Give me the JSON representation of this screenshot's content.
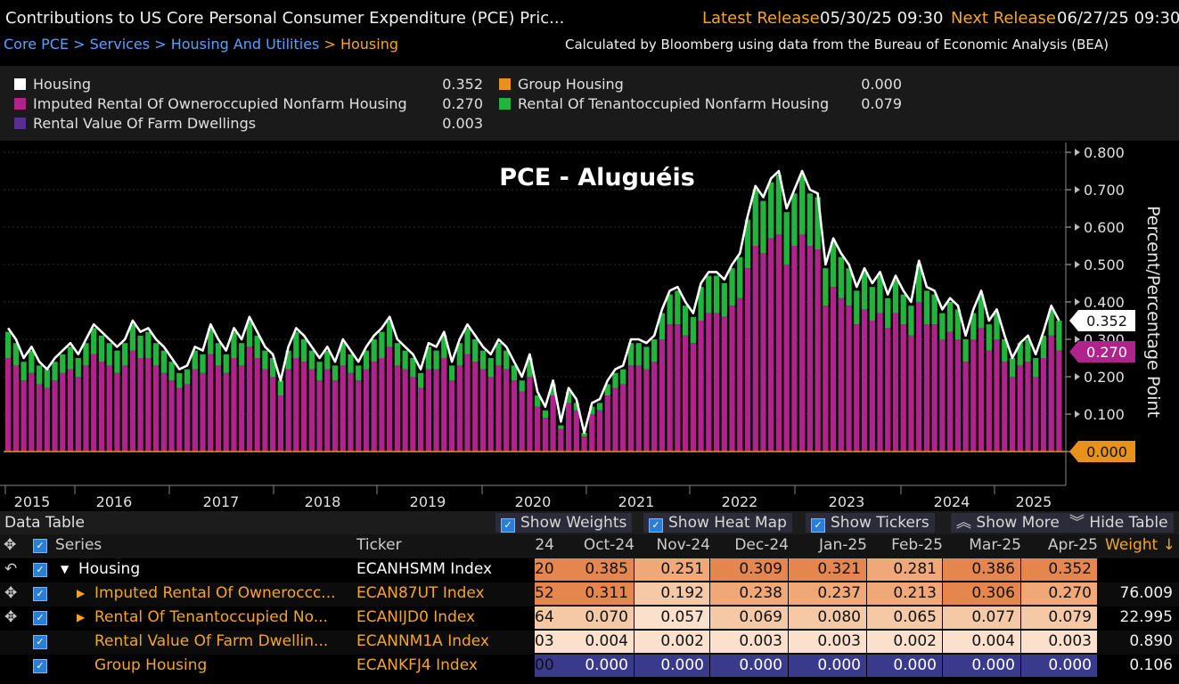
{
  "header": {
    "title": "Contributions to US Core Personal Consumer Expenditure (PCE) Pric...",
    "latest_label": "Latest Release",
    "latest_value": "05/30/25 09:30",
    "next_label": "Next Release",
    "next_value": "06/27/25 09:30",
    "crumb1": "Core PCE",
    "crumb2": "Services",
    "crumb3": "Housing And Utilities",
    "crumb4": "Housing",
    "source": "Calculated by Bloomberg using data from the Bureau of Economic Analysis (BEA)"
  },
  "legend": {
    "items": [
      {
        "label": "Housing",
        "value": "0.352",
        "color": "#ffffff"
      },
      {
        "label": "Group Housing",
        "value": "0.000",
        "color": "#e8921c"
      },
      {
        "label": "Imputed Rental Of Owneroccupied Nonfarm Housing",
        "value": "0.270",
        "color": "#b0228c"
      },
      {
        "label": "Rental Of Tenantoccupied Nonfarm Housing",
        "value": "0.079",
        "color": "#22b43c"
      },
      {
        "label": "Rental Value Of Farm Dwellings",
        "value": "0.003",
        "color": "#5a2d91"
      }
    ]
  },
  "chart_data": {
    "type": "bar",
    "title": "PCE - Aluguéis",
    "ylabel": "Percent/Percentage Point",
    "ylim": [
      0,
      0.8
    ],
    "yticks": [
      "0.800",
      "0.700",
      "0.600",
      "0.500",
      "0.400",
      "0.300",
      "0.200",
      "0.100",
      "0.000"
    ],
    "year_labels": [
      "2015",
      "2016",
      "2017",
      "2018",
      "2019",
      "2020",
      "2021",
      "2022",
      "2023",
      "2024",
      "2025"
    ],
    "flags": {
      "total": "0.352",
      "imputed": "0.270",
      "group": "0.000"
    },
    "series": [
      {
        "name": "Housing",
        "style": "line",
        "values": [
          0.33,
          0.3,
          0.25,
          0.28,
          0.24,
          0.22,
          0.25,
          0.27,
          0.29,
          0.26,
          0.3,
          0.34,
          0.32,
          0.3,
          0.28,
          0.3,
          0.35,
          0.32,
          0.33,
          0.3,
          0.28,
          0.25,
          0.22,
          0.23,
          0.28,
          0.27,
          0.34,
          0.3,
          0.27,
          0.33,
          0.3,
          0.36,
          0.32,
          0.28,
          0.26,
          0.19,
          0.28,
          0.33,
          0.31,
          0.28,
          0.25,
          0.28,
          0.24,
          0.3,
          0.27,
          0.24,
          0.28,
          0.31,
          0.33,
          0.36,
          0.3,
          0.28,
          0.26,
          0.22,
          0.29,
          0.28,
          0.32,
          0.24,
          0.3,
          0.34,
          0.31,
          0.28,
          0.26,
          0.3,
          0.28,
          0.24,
          0.2,
          0.26,
          0.16,
          0.12,
          0.19,
          0.08,
          0.17,
          0.14,
          0.05,
          0.13,
          0.14,
          0.19,
          0.22,
          0.23,
          0.3,
          0.3,
          0.29,
          0.31,
          0.38,
          0.43,
          0.44,
          0.4,
          0.37,
          0.45,
          0.48,
          0.48,
          0.46,
          0.5,
          0.53,
          0.63,
          0.71,
          0.68,
          0.73,
          0.75,
          0.65,
          0.7,
          0.75,
          0.7,
          0.69,
          0.5,
          0.57,
          0.53,
          0.5,
          0.44,
          0.49,
          0.45,
          0.48,
          0.42,
          0.47,
          0.43,
          0.4,
          0.51,
          0.44,
          0.43,
          0.38,
          0.41,
          0.39,
          0.31,
          0.38,
          0.43,
          0.35,
          0.38,
          0.31,
          0.25,
          0.29,
          0.31,
          0.26,
          0.32,
          0.39,
          0.35
        ]
      },
      {
        "name": "Imputed Rental Of Owneroccupied Nonfarm Housing",
        "values": [
          0.25,
          0.23,
          0.19,
          0.21,
          0.18,
          0.17,
          0.19,
          0.21,
          0.22,
          0.2,
          0.23,
          0.26,
          0.24,
          0.23,
          0.21,
          0.23,
          0.27,
          0.25,
          0.25,
          0.23,
          0.21,
          0.19,
          0.17,
          0.18,
          0.22,
          0.21,
          0.26,
          0.23,
          0.21,
          0.25,
          0.23,
          0.28,
          0.25,
          0.22,
          0.2,
          0.15,
          0.22,
          0.25,
          0.24,
          0.22,
          0.19,
          0.22,
          0.19,
          0.23,
          0.21,
          0.19,
          0.22,
          0.24,
          0.25,
          0.28,
          0.23,
          0.22,
          0.2,
          0.17,
          0.22,
          0.22,
          0.25,
          0.19,
          0.23,
          0.26,
          0.24,
          0.22,
          0.2,
          0.23,
          0.22,
          0.19,
          0.16,
          0.2,
          0.12,
          0.09,
          0.15,
          0.06,
          0.13,
          0.11,
          0.04,
          0.1,
          0.11,
          0.15,
          0.17,
          0.18,
          0.23,
          0.23,
          0.22,
          0.24,
          0.3,
          0.34,
          0.34,
          0.31,
          0.29,
          0.35,
          0.37,
          0.37,
          0.36,
          0.39,
          0.41,
          0.49,
          0.55,
          0.53,
          0.57,
          0.58,
          0.5,
          0.55,
          0.58,
          0.55,
          0.54,
          0.39,
          0.44,
          0.41,
          0.39,
          0.34,
          0.38,
          0.35,
          0.37,
          0.33,
          0.37,
          0.34,
          0.31,
          0.4,
          0.34,
          0.34,
          0.3,
          0.32,
          0.3,
          0.24,
          0.3,
          0.33,
          0.27,
          0.3,
          0.24,
          0.2,
          0.23,
          0.24,
          0.2,
          0.25,
          0.31,
          0.27
        ]
      },
      {
        "name": "Rental Of Tenantoccupied Nonfarm Housing",
        "values": [
          0.07,
          0.06,
          0.05,
          0.06,
          0.05,
          0.05,
          0.05,
          0.05,
          0.06,
          0.05,
          0.06,
          0.07,
          0.07,
          0.06,
          0.06,
          0.06,
          0.07,
          0.06,
          0.07,
          0.06,
          0.06,
          0.05,
          0.04,
          0.04,
          0.05,
          0.05,
          0.07,
          0.06,
          0.05,
          0.07,
          0.06,
          0.07,
          0.06,
          0.05,
          0.05,
          0.04,
          0.05,
          0.07,
          0.06,
          0.05,
          0.05,
          0.05,
          0.04,
          0.06,
          0.05,
          0.04,
          0.05,
          0.06,
          0.07,
          0.07,
          0.06,
          0.05,
          0.05,
          0.04,
          0.06,
          0.05,
          0.06,
          0.04,
          0.06,
          0.07,
          0.06,
          0.05,
          0.05,
          0.06,
          0.05,
          0.04,
          0.03,
          0.05,
          0.03,
          0.02,
          0.03,
          0.01,
          0.03,
          0.02,
          0.01,
          0.02,
          0.02,
          0.03,
          0.04,
          0.04,
          0.06,
          0.06,
          0.06,
          0.06,
          0.07,
          0.08,
          0.09,
          0.08,
          0.07,
          0.09,
          0.1,
          0.1,
          0.09,
          0.1,
          0.11,
          0.13,
          0.15,
          0.14,
          0.15,
          0.16,
          0.14,
          0.14,
          0.16,
          0.14,
          0.14,
          0.1,
          0.12,
          0.11,
          0.1,
          0.09,
          0.1,
          0.09,
          0.1,
          0.08,
          0.09,
          0.08,
          0.08,
          0.1,
          0.09,
          0.08,
          0.07,
          0.08,
          0.08,
          0.06,
          0.07,
          0.09,
          0.07,
          0.07,
          0.06,
          0.05,
          0.06,
          0.06,
          0.05,
          0.06,
          0.07,
          0.08
        ]
      }
    ]
  },
  "table": {
    "title": "Data Table",
    "buttons": {
      "show_weights": "Show Weights",
      "show_heat_map": "Show Heat Map",
      "show_tickers": "Show Tickers",
      "show_more": "Show More",
      "hide_table": "Hide Table"
    },
    "columns": {
      "series": "Series",
      "ticker": "Ticker",
      "weight": "Weight"
    },
    "partial_col": "24",
    "months": [
      "Oct-24",
      "Nov-24",
      "Dec-24",
      "Jan-25",
      "Feb-25",
      "Mar-25",
      "Apr-25"
    ],
    "rows": [
      {
        "series": "Housing",
        "ticker": "ECANHSMM Index",
        "partial": "20",
        "values": [
          "0.385",
          "0.251",
          "0.309",
          "0.321",
          "0.281",
          "0.386",
          "0.352"
        ],
        "weight": ""
      },
      {
        "series": "Imputed Rental Of Owneroccc...",
        "ticker": "ECAN87UT Index",
        "partial": "52",
        "values": [
          "0.311",
          "0.192",
          "0.238",
          "0.237",
          "0.213",
          "0.306",
          "0.270"
        ],
        "weight": "76.009"
      },
      {
        "series": "Rental Of Tenantoccupied No...",
        "ticker": "ECANIJD0 Index",
        "partial": "64",
        "values": [
          "0.070",
          "0.057",
          "0.069",
          "0.080",
          "0.065",
          "0.077",
          "0.079"
        ],
        "weight": "22.995"
      },
      {
        "series": "Rental Value Of Farm Dwellin...",
        "ticker": "ECANNM1A Index",
        "partial": "03",
        "values": [
          "0.004",
          "0.002",
          "0.003",
          "0.003",
          "0.002",
          "0.004",
          "0.003"
        ],
        "weight": "0.890"
      },
      {
        "series": "Group Housing",
        "ticker": "ECANKFJ4 Index",
        "partial": "00",
        "values": [
          "0.000",
          "0.000",
          "0.000",
          "0.000",
          "0.000",
          "0.000",
          "0.000"
        ],
        "weight": "0.106"
      }
    ]
  }
}
